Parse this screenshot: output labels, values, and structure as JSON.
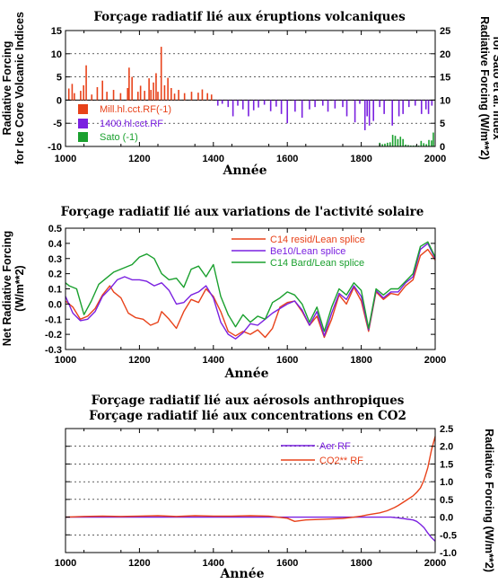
{
  "chart_data": [
    {
      "type": "bar",
      "title": "Forçage radiatif lié aux éruptions volcaniques",
      "xlabel": "Année",
      "ylabel_left": [
        "Radiative Forcing",
        "for Ice Core Volcanic Indices"
      ],
      "ylabel_right": [
        "Radiative Forcing (W/m**2)",
        "for Sato et al. Index"
      ],
      "xlim": [
        1000,
        2000
      ],
      "ylim_left": [
        -10,
        15
      ],
      "ylim_right": [
        0,
        25
      ],
      "xticks": [
        "1000",
        "1200",
        "1400",
        "1600",
        "1800",
        "2000"
      ],
      "yticks_left": [
        "-10",
        "-5",
        "0",
        "5",
        "10",
        "15"
      ],
      "yticks_right": [
        "0",
        "5",
        "10",
        "15",
        "20",
        "25"
      ],
      "legend_placement": "bottom-left",
      "series": [
        {
          "name": "Mill.hl.cct.RF(-1)",
          "color": "#e8421a",
          "x": [
            1009,
            1018,
            1024,
            1041,
            1049,
            1056,
            1071,
            1086,
            1100,
            1112,
            1130,
            1149,
            1168,
            1172,
            1180,
            1196,
            1203,
            1214,
            1226,
            1231,
            1238,
            1245,
            1250,
            1259,
            1268,
            1277,
            1286,
            1295,
            1306,
            1322,
            1341,
            1359,
            1370,
            1384,
            1395
          ],
          "values": [
            2.5,
            3.5,
            1.5,
            2.0,
            3.2,
            7.5,
            1.2,
            2.8,
            4.2,
            1.8,
            2.2,
            1.5,
            2.6,
            7.0,
            5.0,
            1.8,
            3.1,
            2.0,
            4.7,
            2.2,
            3.8,
            5.8,
            1.8,
            11.5,
            3.2,
            4.8,
            2.6,
            1.4,
            2.2,
            1.5,
            1.8,
            1.6,
            2.3,
            1.5,
            1.2
          ]
        },
        {
          "name": "1400.hl.cct.RF",
          "color": "#7a20e0",
          "x": [
            1412,
            1424,
            1440,
            1453,
            1466,
            1480,
            1495,
            1509,
            1522,
            1538,
            1555,
            1570,
            1584,
            1600,
            1621,
            1640,
            1660,
            1675,
            1696,
            1710,
            1729,
            1750,
            1761,
            1783,
            1796,
            1810,
            1816,
            1822,
            1833,
            1850,
            1862,
            1884,
            1902,
            1913,
            1929,
            1946,
            1963,
            1975,
            1982,
            1991
          ],
          "values": [
            -1.2,
            -0.8,
            -1.5,
            -3.5,
            -1.2,
            -2.0,
            -3.5,
            -2.2,
            -1.6,
            -1.0,
            -2.4,
            -1.4,
            -3.0,
            -5.0,
            -2.5,
            -3.8,
            -2.0,
            -1.5,
            -1.2,
            -2.5,
            -1.8,
            -1.5,
            -3.5,
            -4.8,
            -0.8,
            -6.5,
            -3.5,
            -5.5,
            -4.5,
            -1.5,
            -3.0,
            -5.5,
            -3.5,
            -3.0,
            -1.5,
            -1.2,
            -3.0,
            -2.0,
            -3.0,
            -1.2
          ]
        },
        {
          "name": "Sato (-1)",
          "color": "#1aa02e",
          "x": [
            1850,
            1857,
            1864,
            1871,
            1878,
            1885,
            1892,
            1899,
            1906,
            1913,
            1920,
            1927,
            1934,
            1941,
            1948,
            1955,
            1962,
            1969,
            1976,
            1983,
            1990,
            1995
          ],
          "values": [
            0.8,
            0.5,
            0.6,
            0.8,
            0.9,
            2.5,
            2.3,
            1.6,
            2.1,
            1.6,
            0.4,
            0.3,
            0.2,
            0.2,
            0.2,
            0.2,
            1.2,
            0.7,
            0.5,
            1.4,
            1.3,
            3.0
          ]
        }
      ]
    },
    {
      "type": "line",
      "title": "Forçage radiatif lié aux variations de l'activité solaire",
      "xlabel": "Année",
      "ylabel": [
        "Net Radiative Forcing",
        "(W/m**2)"
      ],
      "xlim": [
        1000,
        2000
      ],
      "ylim": [
        -0.3,
        0.5
      ],
      "xticks": [
        "1000",
        "1200",
        "1400",
        "1600",
        "1800",
        "2000"
      ],
      "yticks": [
        "-0.3",
        "-0.2",
        "-0.1",
        "0.0",
        "0.1",
        "0.2",
        "0.3",
        "0.4",
        "0.5"
      ],
      "legend_placement": "top-right",
      "series": [
        {
          "name": "C14 resid/Lean splice",
          "color": "#e8421a",
          "x": [
            1000,
            1020,
            1040,
            1060,
            1080,
            1100,
            1120,
            1130,
            1150,
            1170,
            1190,
            1210,
            1230,
            1250,
            1260,
            1280,
            1300,
            1320,
            1340,
            1360,
            1380,
            1400,
            1420,
            1440,
            1460,
            1480,
            1500,
            1520,
            1540,
            1560,
            1580,
            1600,
            1620,
            1640,
            1660,
            1680,
            1700,
            1720,
            1740,
            1760,
            1780,
            1800,
            1820,
            1840,
            1860,
            1880,
            1900,
            1920,
            1940,
            1960,
            1980,
            2000
          ],
          "values": [
            0.02,
            -0.02,
            -0.1,
            -0.08,
            -0.03,
            0.06,
            0.12,
            0.08,
            0.04,
            -0.06,
            -0.09,
            -0.1,
            -0.14,
            -0.12,
            -0.05,
            -0.1,
            -0.16,
            -0.05,
            0.03,
            0.01,
            0.1,
            0.05,
            -0.05,
            -0.18,
            -0.21,
            -0.18,
            -0.2,
            -0.17,
            -0.22,
            -0.16,
            -0.02,
            0.01,
            0.02,
            -0.05,
            -0.14,
            -0.08,
            -0.22,
            -0.1,
            0.06,
            0.0,
            0.11,
            0.02,
            -0.18,
            0.08,
            0.03,
            0.07,
            0.06,
            0.12,
            0.16,
            0.32,
            0.36,
            0.29
          ]
        },
        {
          "name": "Be10/Lean splice",
          "color": "#7a20e0",
          "x": [
            1000,
            1020,
            1040,
            1060,
            1080,
            1100,
            1120,
            1140,
            1160,
            1180,
            1200,
            1220,
            1240,
            1260,
            1280,
            1300,
            1320,
            1340,
            1360,
            1380,
            1400,
            1420,
            1440,
            1460,
            1480,
            1500,
            1520,
            1540,
            1560,
            1580,
            1600,
            1620,
            1640,
            1660,
            1680,
            1700,
            1720,
            1740,
            1760,
            1780,
            1800,
            1820,
            1840,
            1860,
            1880,
            1900,
            1920,
            1940,
            1960,
            1980,
            2000
          ],
          "values": [
            0.05,
            -0.06,
            -0.11,
            -0.1,
            -0.05,
            0.05,
            0.1,
            0.16,
            0.18,
            0.16,
            0.16,
            0.15,
            0.12,
            0.14,
            0.09,
            0.0,
            0.01,
            0.06,
            0.08,
            0.12,
            0.04,
            -0.12,
            -0.2,
            -0.23,
            -0.19,
            -0.13,
            -0.14,
            -0.1,
            -0.06,
            -0.03,
            0.0,
            0.02,
            -0.04,
            -0.14,
            -0.05,
            -0.21,
            -0.06,
            0.07,
            0.03,
            0.12,
            0.05,
            -0.17,
            0.09,
            0.04,
            0.08,
            0.08,
            0.14,
            0.18,
            0.36,
            0.4,
            0.3
          ]
        },
        {
          "name": "C14 Bard/Lean splice",
          "color": "#1aa02e",
          "x": [
            1000,
            1010,
            1030,
            1050,
            1070,
            1090,
            1110,
            1130,
            1160,
            1180,
            1200,
            1220,
            1240,
            1260,
            1280,
            1300,
            1320,
            1340,
            1360,
            1380,
            1400,
            1420,
            1440,
            1460,
            1480,
            1500,
            1520,
            1540,
            1560,
            1580,
            1600,
            1620,
            1640,
            1660,
            1680,
            1700,
            1720,
            1740,
            1760,
            1780,
            1800,
            1820,
            1840,
            1860,
            1880,
            1900,
            1920,
            1940,
            1960,
            1980,
            2000
          ],
          "values": [
            0.14,
            0.12,
            0.1,
            -0.07,
            0.02,
            0.13,
            0.17,
            0.21,
            0.24,
            0.26,
            0.31,
            0.33,
            0.3,
            0.2,
            0.16,
            0.17,
            0.11,
            0.23,
            0.25,
            0.18,
            0.26,
            0.05,
            -0.07,
            -0.15,
            -0.07,
            -0.12,
            -0.08,
            -0.1,
            0.01,
            0.04,
            0.08,
            0.06,
            0.0,
            -0.12,
            -0.02,
            -0.18,
            -0.02,
            0.1,
            0.06,
            0.14,
            0.09,
            -0.16,
            0.1,
            0.06,
            0.1,
            0.1,
            0.15,
            0.2,
            0.38,
            0.41,
            0.31
          ]
        }
      ]
    },
    {
      "type": "line",
      "title": [
        "Forçage radiatif lié aux aérosols anthropiques",
        "Forçage radiatif lié aux concentrations en CO2"
      ],
      "xlabel": "Année",
      "ylabel_right": "Radiative Forcing (W/m**2)",
      "xlim": [
        1000,
        2000
      ],
      "ylim": [
        -1.0,
        2.5
      ],
      "xticks": [
        "1000",
        "1200",
        "1400",
        "1600",
        "1800",
        "2000"
      ],
      "yticks_right": [
        "-1.0",
        "-0.5",
        "0.0",
        "0.5",
        "1.0",
        "1.5",
        "2.0",
        "2.5"
      ],
      "legend_placement": "top-center",
      "series": [
        {
          "name": "Aer RF",
          "color": "#7a20e0",
          "x": [
            1000,
            1200,
            1400,
            1600,
            1800,
            1850,
            1880,
            1900,
            1920,
            1940,
            1950,
            1960,
            1970,
            1980,
            1990,
            2000
          ],
          "values": [
            0.0,
            0.0,
            0.0,
            0.0,
            0.0,
            0.0,
            0.0,
            -0.02,
            -0.05,
            -0.08,
            -0.12,
            -0.2,
            -0.3,
            -0.45,
            -0.58,
            -0.68
          ]
        },
        {
          "name": "CO2** RF",
          "color": "#e8421a",
          "x": [
            1000,
            1050,
            1100,
            1150,
            1200,
            1250,
            1300,
            1350,
            1400,
            1450,
            1500,
            1550,
            1600,
            1620,
            1650,
            1700,
            1750,
            1780,
            1800,
            1820,
            1850,
            1870,
            1890,
            1900,
            1920,
            1940,
            1950,
            1960,
            1970,
            1980,
            1990,
            2000
          ],
          "values": [
            0.0,
            0.02,
            0.03,
            0.02,
            0.03,
            0.04,
            0.02,
            0.04,
            0.03,
            0.03,
            0.04,
            0.03,
            -0.03,
            -0.12,
            -0.08,
            -0.06,
            -0.04,
            0.0,
            0.03,
            0.07,
            0.12,
            0.18,
            0.27,
            0.33,
            0.46,
            0.6,
            0.7,
            0.82,
            1.05,
            1.4,
            1.9,
            2.28
          ]
        }
      ]
    }
  ]
}
